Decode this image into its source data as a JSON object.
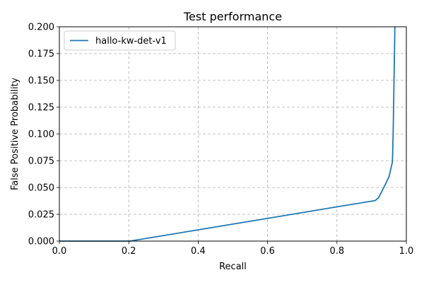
{
  "chart_data": {
    "type": "line",
    "title": "Test performance",
    "xlabel": "Recall",
    "ylabel": "False Positive Probability",
    "xlim": [
      0.0,
      1.0
    ],
    "ylim": [
      0.0,
      0.2
    ],
    "x_ticks": [
      "0.0",
      "0.2",
      "0.4",
      "0.6",
      "0.8",
      "1.0"
    ],
    "y_ticks": [
      "0.000",
      "0.025",
      "0.050",
      "0.075",
      "0.100",
      "0.125",
      "0.150",
      "0.175",
      "0.200"
    ],
    "grid": true,
    "legend_position": "top-left",
    "series": [
      {
        "name": "hallo-kw-det-v1",
        "color": "#1f77b4",
        "x": [
          0.0,
          0.2,
          0.203,
          0.4,
          0.6,
          0.8,
          0.91,
          0.92,
          0.935,
          0.95,
          0.96,
          0.962,
          0.965,
          0.967
        ],
        "y": [
          0.0,
          0.0,
          0.0,
          0.0105,
          0.0212,
          0.032,
          0.0378,
          0.0405,
          0.05,
          0.06,
          0.074,
          0.1,
          0.16,
          0.2
        ]
      }
    ]
  }
}
